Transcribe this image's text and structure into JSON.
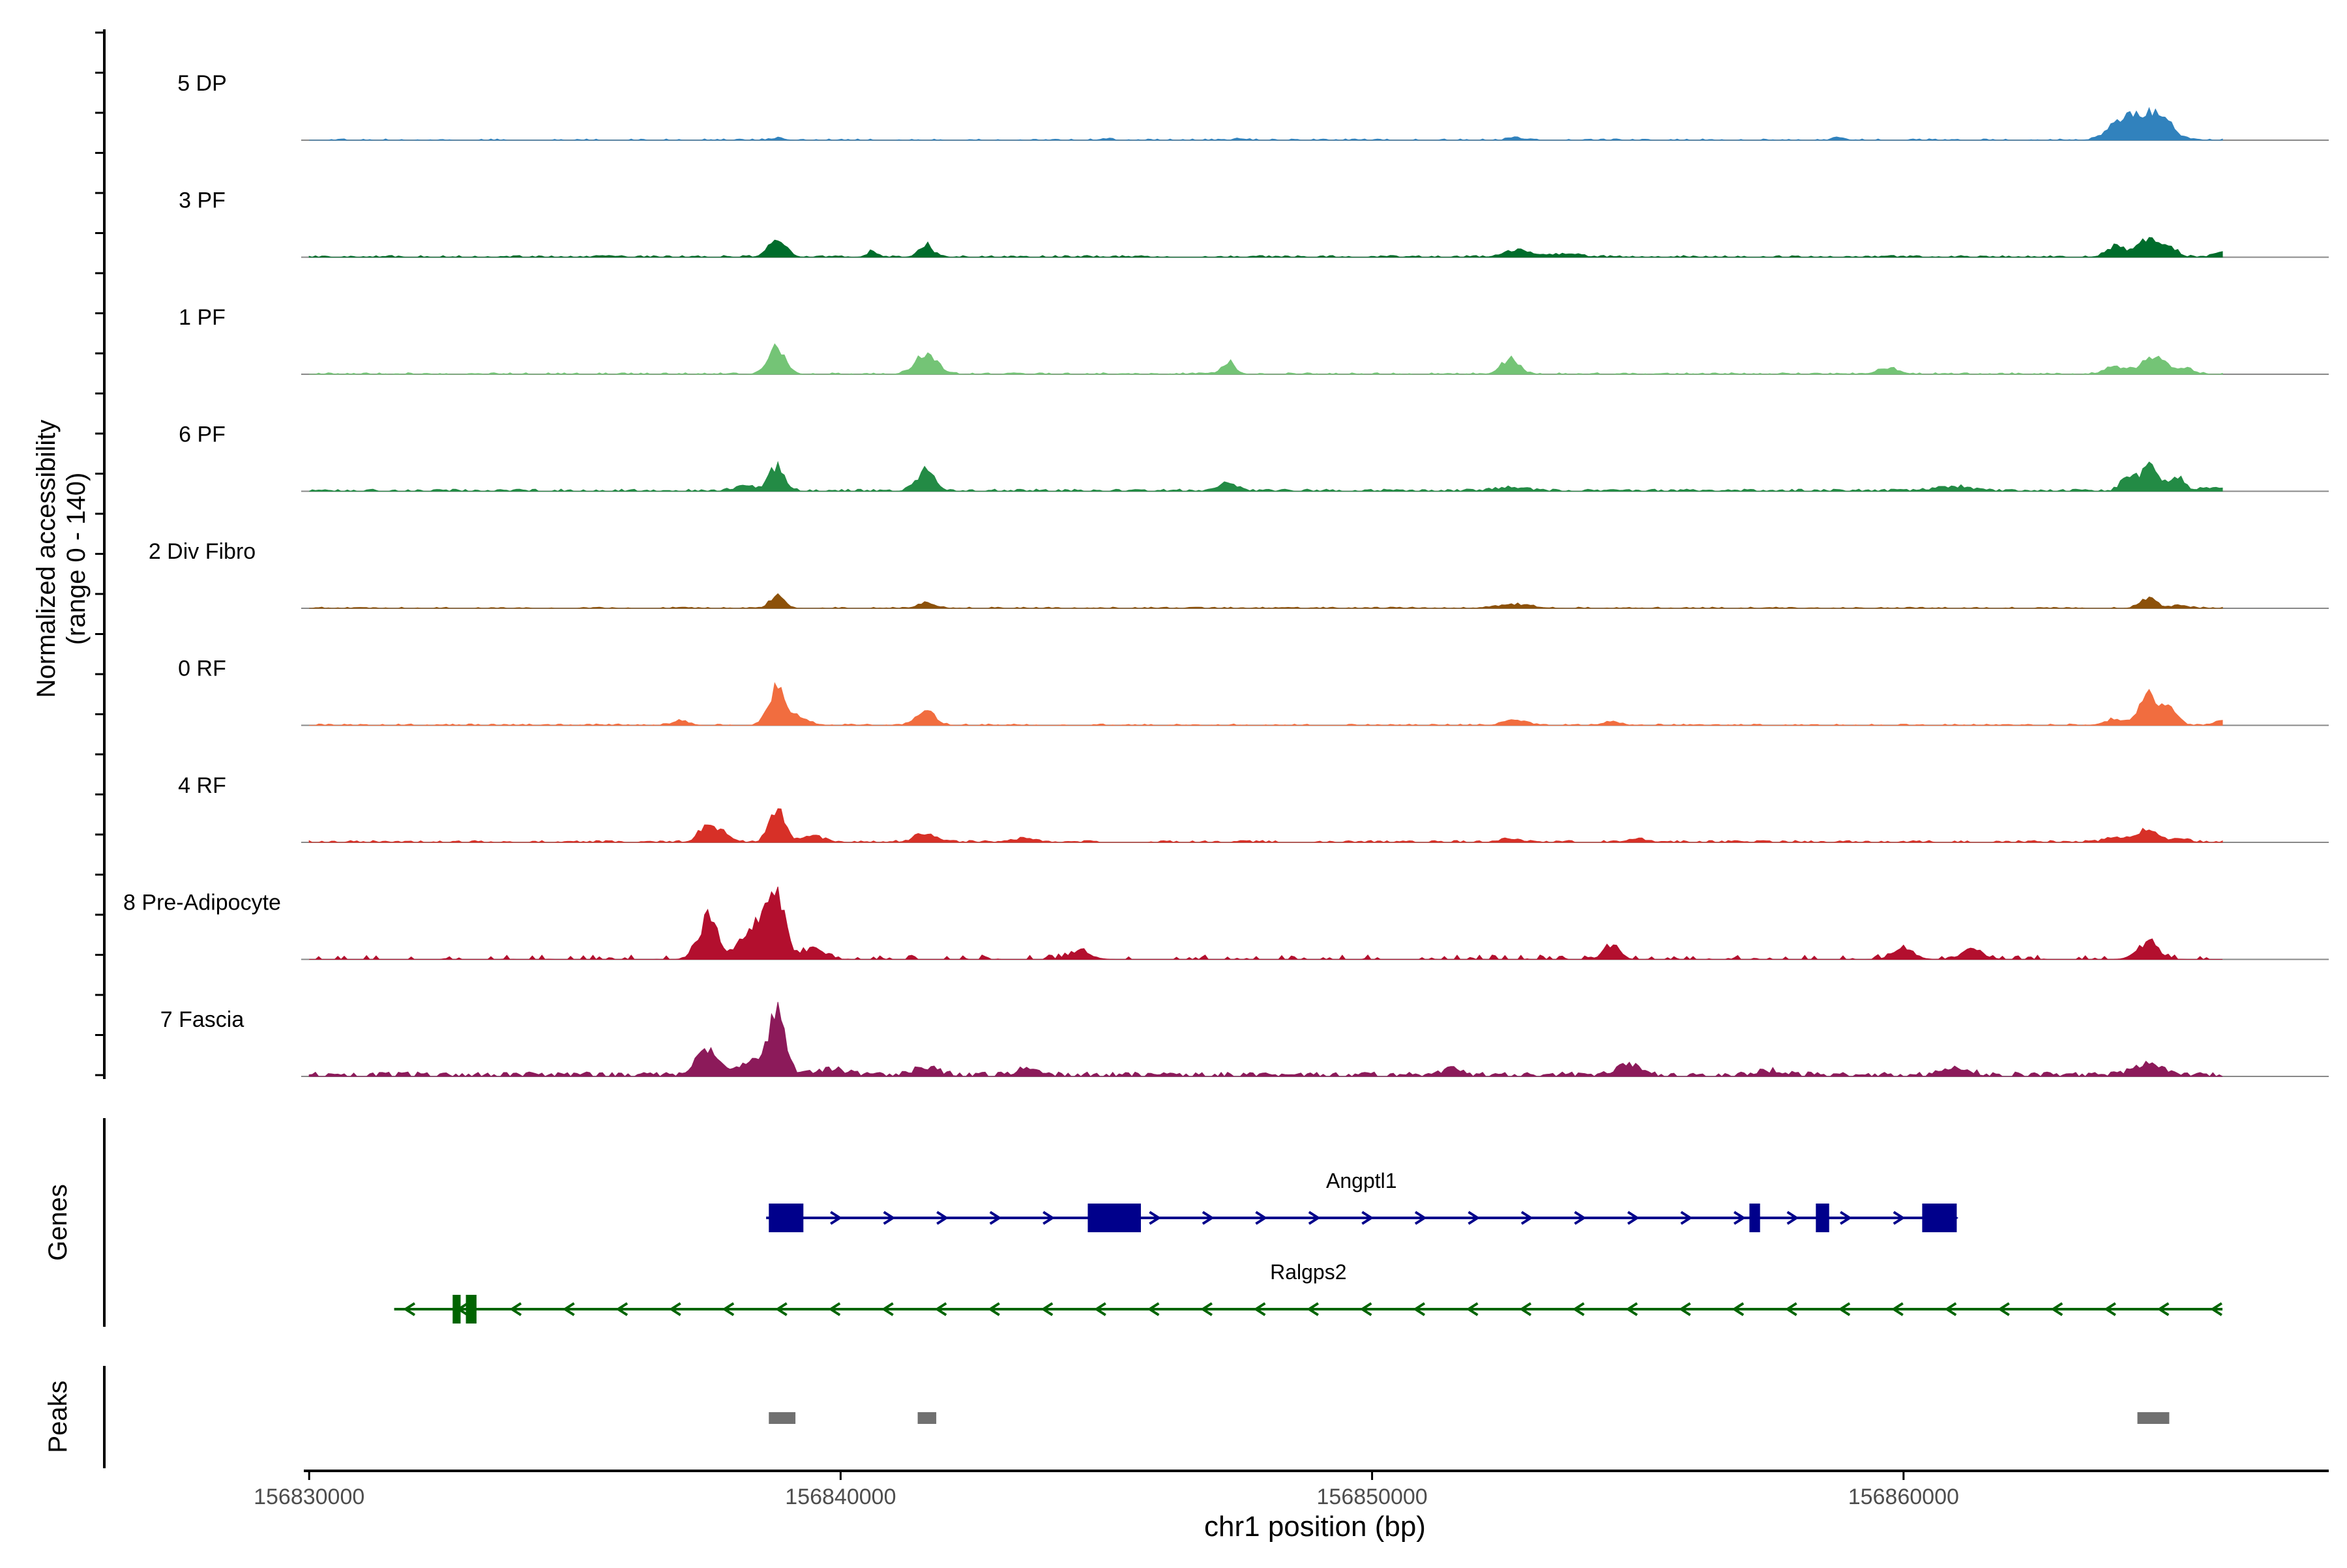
{
  "chart_data": {
    "type": "area",
    "title": "",
    "ylabel_line1": "Normalized accessibility",
    "ylabel_line2": "(range 0 - 140)",
    "ylim": [
      0,
      140
    ],
    "xlabel": "chr1 position (bp)",
    "xlim": [
      156829900,
      156868000
    ],
    "xticks": [
      156830000,
      156840000,
      156850000,
      156860000
    ],
    "xtick_labels": [
      "156830000",
      "156840000",
      "156850000",
      "156860000"
    ],
    "data_range": [
      156830000,
      156866000
    ],
    "tracks": [
      {
        "name": "5 DP",
        "color": "#3182bd",
        "base": 0.6,
        "noise": 1.2,
        "density": 0.35,
        "peaks": [
          [
            156838800,
            3,
            120
          ],
          [
            156845000,
            2,
            100
          ],
          [
            156847500,
            2,
            100
          ],
          [
            156852700,
            4,
            120
          ],
          [
            156858800,
            4,
            100
          ],
          [
            156864500,
            36,
            350
          ],
          [
            156864900,
            16,
            150
          ],
          [
            156864000,
            12,
            200
          ]
        ]
      },
      {
        "name": "3 PF",
        "color": "#006d2c",
        "base": 0.8,
        "noise": 1.6,
        "density": 0.5,
        "peaks": [
          [
            156838800,
            24,
            160
          ],
          [
            156840600,
            8,
            100
          ],
          [
            156841600,
            16,
            130
          ],
          [
            156852700,
            10,
            220
          ],
          [
            156853600,
            4,
            300
          ],
          [
            156864000,
            14,
            170
          ],
          [
            156864600,
            24,
            200
          ],
          [
            156865000,
            12,
            150
          ],
          [
            156866000,
            6,
            150
          ]
        ]
      },
      {
        "name": "1 PF",
        "color": "#74c476",
        "base": 0.6,
        "noise": 1.4,
        "density": 0.45,
        "peaks": [
          [
            156838800,
            36,
            160
          ],
          [
            156841600,
            28,
            200
          ],
          [
            156847300,
            16,
            130
          ],
          [
            156852600,
            20,
            170
          ],
          [
            156859700,
            8,
            200
          ],
          [
            156864000,
            10,
            200
          ],
          [
            156864700,
            24,
            220
          ],
          [
            156865300,
            8,
            150
          ]
        ]
      },
      {
        "name": "6 PF",
        "color": "#238b45",
        "base": 1.0,
        "noise": 2.0,
        "density": 0.6,
        "peaks": [
          [
            156838800,
            32,
            150
          ],
          [
            156838200,
            6,
            200
          ],
          [
            156841600,
            26,
            170
          ],
          [
            156847300,
            10,
            170
          ],
          [
            156852600,
            4,
            300
          ],
          [
            156860900,
            6,
            300
          ],
          [
            156864200,
            20,
            120
          ],
          [
            156864600,
            36,
            150
          ],
          [
            156865100,
            20,
            150
          ],
          [
            156865800,
            5,
            200
          ]
        ]
      },
      {
        "name": "2 Div Fibro",
        "color": "#8c510a",
        "base": 0.5,
        "noise": 1.2,
        "density": 0.4,
        "peaks": [
          [
            156838800,
            18,
            130
          ],
          [
            156841600,
            8,
            150
          ],
          [
            156852700,
            5,
            300
          ],
          [
            156864600,
            14,
            150
          ],
          [
            156865200,
            4,
            150
          ]
        ]
      },
      {
        "name": "0 RF",
        "color": "#f16d3f",
        "base": 0.5,
        "noise": 1.4,
        "density": 0.4,
        "peaks": [
          [
            156838800,
            50,
            150
          ],
          [
            156839200,
            10,
            200
          ],
          [
            156841600,
            20,
            170
          ],
          [
            156837000,
            6,
            150
          ],
          [
            156852700,
            8,
            200
          ],
          [
            156854500,
            5,
            150
          ],
          [
            156864000,
            8,
            200
          ],
          [
            156864600,
            40,
            160
          ],
          [
            156865000,
            22,
            150
          ],
          [
            156866000,
            6,
            150
          ]
        ]
      },
      {
        "name": "4 RF",
        "color": "#d73027",
        "base": 0.8,
        "noise": 1.8,
        "density": 0.5,
        "peaks": [
          [
            156837500,
            22,
            160
          ],
          [
            156837800,
            12,
            120
          ],
          [
            156838800,
            46,
            140
          ],
          [
            156839500,
            8,
            200
          ],
          [
            156841600,
            12,
            200
          ],
          [
            156843500,
            5,
            200
          ],
          [
            156852600,
            5,
            200
          ],
          [
            156855000,
            4,
            200
          ],
          [
            156864000,
            6,
            200
          ],
          [
            156864600,
            18,
            180
          ],
          [
            156865200,
            6,
            150
          ]
        ]
      },
      {
        "name": "8 Pre-Adipocyte",
        "color": "#b30f2e",
        "base": 0.0,
        "noise": 6.0,
        "density": 0.3,
        "peaks": [
          [
            156837500,
            55,
            180
          ],
          [
            156838800,
            95,
            150
          ],
          [
            156838500,
            40,
            150
          ],
          [
            156838200,
            25,
            200
          ],
          [
            156839500,
            15,
            200
          ],
          [
            156844500,
            12,
            200
          ],
          [
            156854500,
            20,
            150
          ],
          [
            156860000,
            14,
            200
          ],
          [
            156861300,
            14,
            200
          ],
          [
            156864600,
            22,
            200
          ]
        ]
      },
      {
        "name": "7 Fascia",
        "color": "#8c1a5a",
        "base": 2.0,
        "noise": 4.0,
        "density": 0.7,
        "peaks": [
          [
            156837500,
            38,
            200
          ],
          [
            156838800,
            80,
            160
          ],
          [
            156838300,
            20,
            200
          ],
          [
            156839800,
            8,
            300
          ],
          [
            156841600,
            10,
            250
          ],
          [
            156843500,
            8,
            200
          ],
          [
            156851500,
            10,
            150
          ],
          [
            156854800,
            14,
            200
          ],
          [
            156857500,
            6,
            250
          ],
          [
            156861000,
            8,
            250
          ],
          [
            156864600,
            14,
            300
          ]
        ]
      }
    ],
    "genes_label": "Genes",
    "genes": [
      {
        "name": "Angptl1",
        "strand": "+",
        "color": "#00008b",
        "start": 156838600,
        "end": 156861000,
        "exons": [
          [
            156838650,
            156839300
          ],
          [
            156844650,
            156845650
          ],
          [
            156857100,
            156857300
          ],
          [
            156858350,
            156858600
          ],
          [
            156860350,
            156861000
          ]
        ]
      },
      {
        "name": "Ralgps2",
        "strand": "-",
        "color": "#006400",
        "start": 156831600,
        "end": 156866000,
        "exons": [
          [
            156832700,
            156832850
          ],
          [
            156832950,
            156833150
          ]
        ]
      }
    ],
    "peaks_label": "Peaks",
    "peaks_color": "#707070",
    "peaks": [
      [
        156838650,
        156839150
      ],
      [
        156841450,
        156841800
      ],
      [
        156864400,
        156865000
      ]
    ]
  }
}
